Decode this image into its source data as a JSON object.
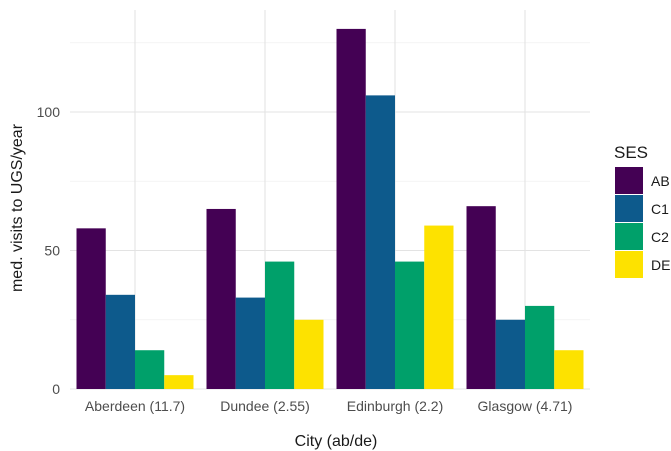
{
  "chart_data": {
    "type": "bar",
    "categories": [
      "Aberdeen (11.7)",
      "Dundee (2.55)",
      "Edinburgh (2.2)",
      "Glasgow (4.71)"
    ],
    "series": [
      {
        "name": "AB",
        "values": [
          58,
          65,
          130,
          66
        ]
      },
      {
        "name": "C1",
        "values": [
          34,
          33,
          106,
          25
        ]
      },
      {
        "name": "C2",
        "values": [
          14,
          46,
          46,
          30
        ]
      },
      {
        "name": "DE",
        "values": [
          5,
          25,
          59,
          14
        ]
      }
    ],
    "colors": [
      "#440154",
      "#0d5a8c",
      "#00a06a",
      "#fde200"
    ],
    "xlabel": "City (ab/de)",
    "ylabel": "med. visits to UGS/year",
    "ylim": [
      0,
      135
    ],
    "yticks": [
      0,
      50,
      100
    ],
    "legend": {
      "title": "SES",
      "position": "right"
    },
    "grid": true
  }
}
